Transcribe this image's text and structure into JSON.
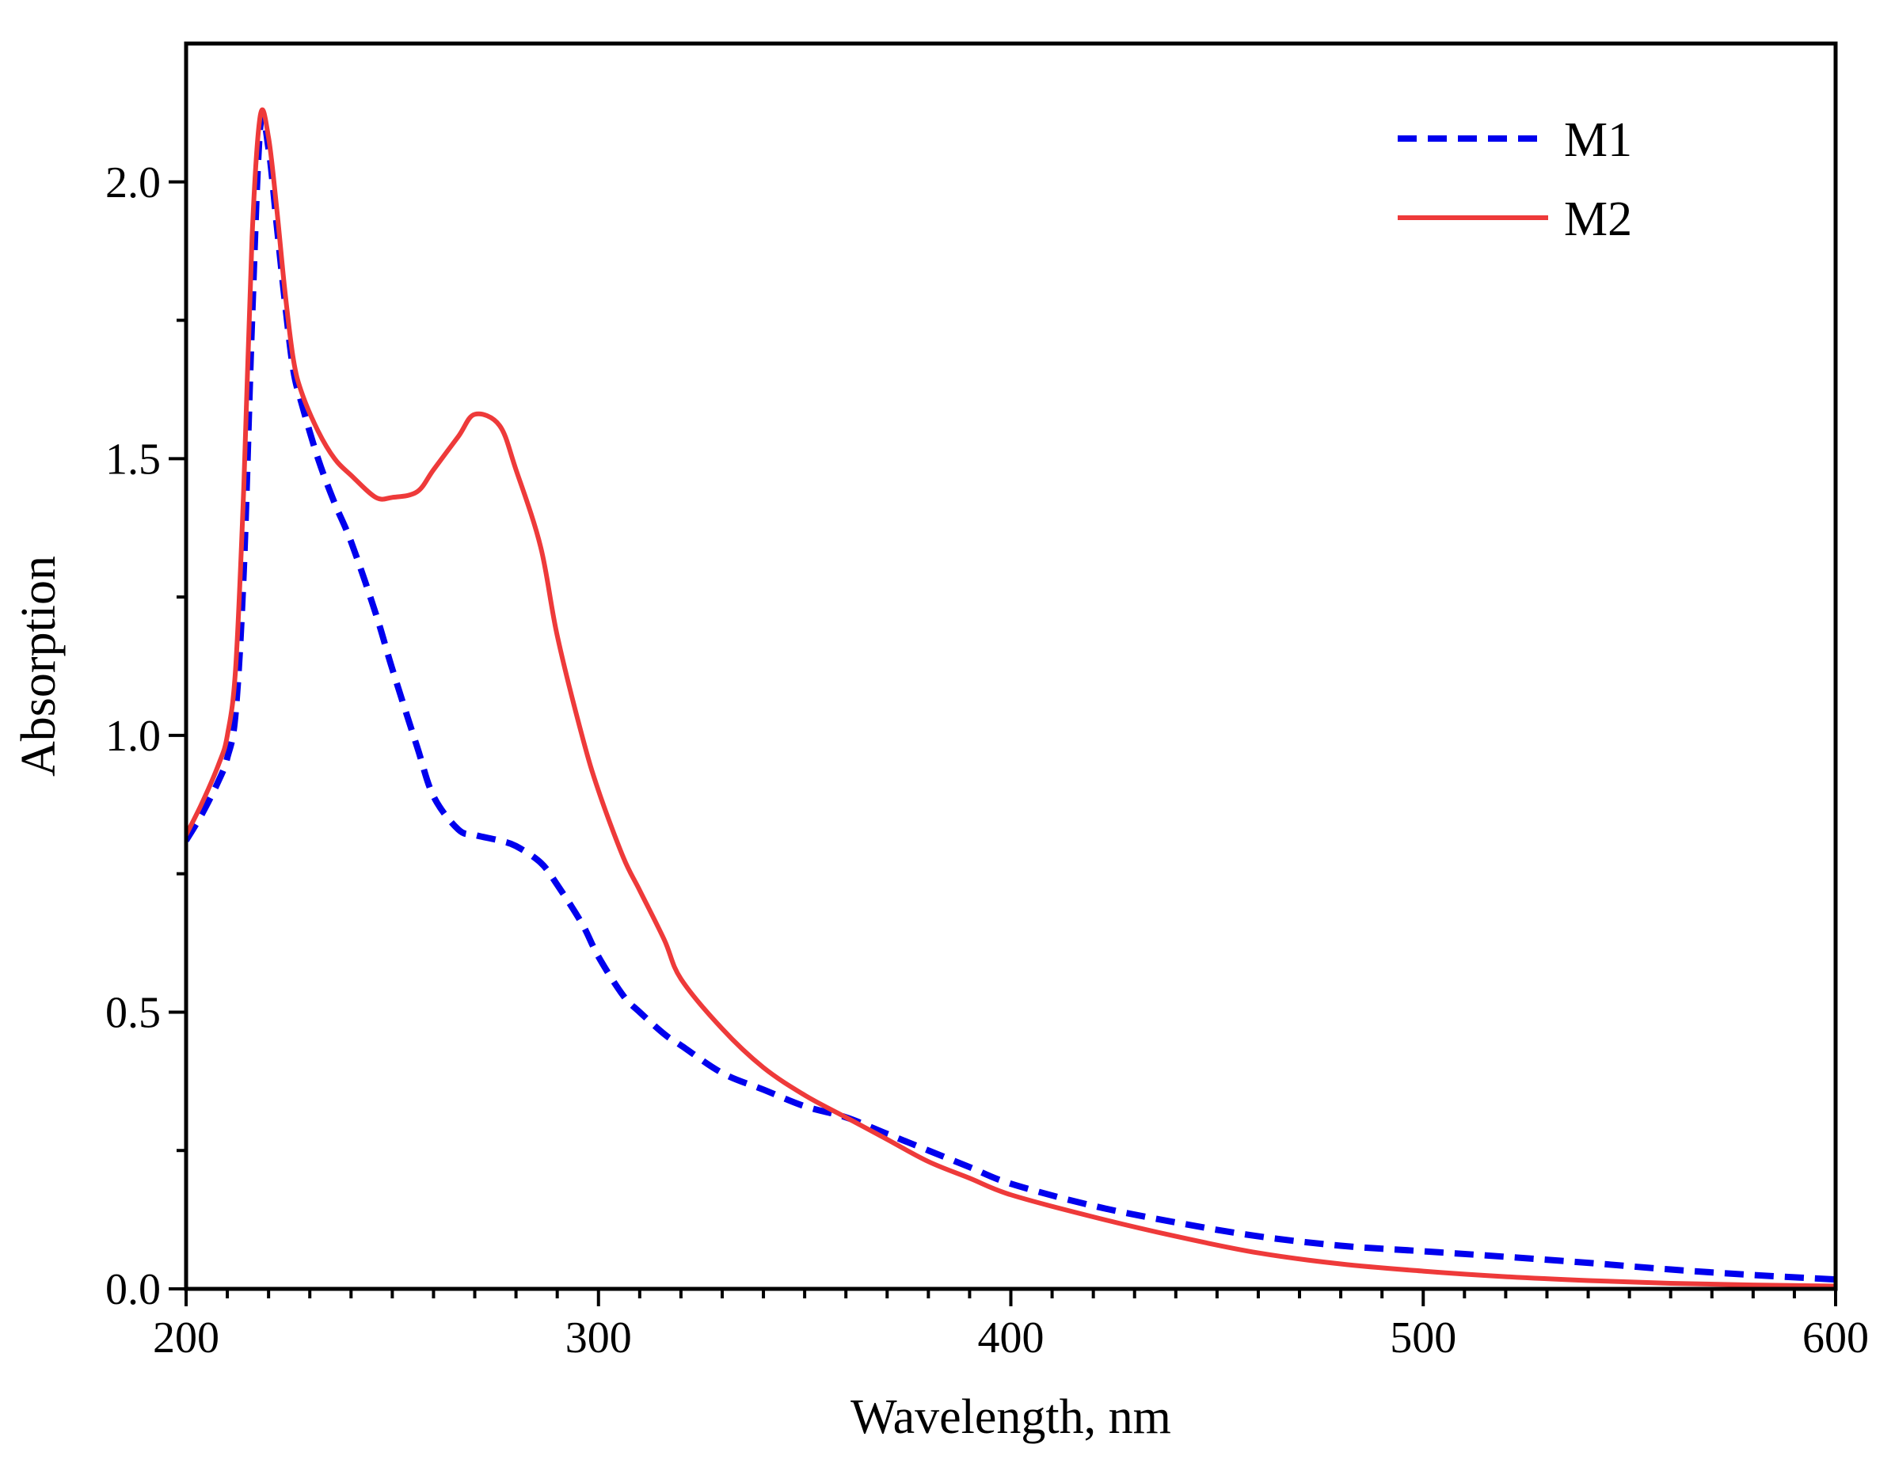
{
  "chart_data": {
    "type": "line",
    "title": "",
    "xlabel": "Wavelength, nm",
    "ylabel": "Absorption",
    "xlim": [
      200,
      600
    ],
    "ylim": [
      0,
      2.25
    ],
    "x_ticks": [
      200,
      300,
      400,
      500,
      600
    ],
    "x_tick_labels": [
      "200",
      "300",
      "400",
      "500",
      "600"
    ],
    "y_ticks": [
      0.0,
      0.5,
      1.0,
      1.5,
      2.0
    ],
    "y_tick_labels": [
      "0.0",
      "0.5",
      "1.0",
      "1.5",
      "2.0"
    ],
    "grid": false,
    "legend_position": "top-right",
    "colors": {
      "M1": "#0000ee",
      "M2": "#ee3a3a"
    },
    "series": [
      {
        "name": "M1",
        "style": "dashed",
        "x": [
          200,
          204,
          208,
          210,
          212,
          214,
          216,
          218,
          220,
          222,
          224,
          226,
          228,
          232,
          236,
          240,
          246,
          250,
          256,
          260,
          266,
          270,
          276,
          280,
          286,
          290,
          296,
          300,
          306,
          310,
          316,
          320,
          330,
          340,
          350,
          360,
          370,
          380,
          390,
          400,
          420,
          440,
          460,
          480,
          500,
          520,
          540,
          560,
          580,
          600
        ],
        "values": [
          0.81,
          0.86,
          0.92,
          0.96,
          1.04,
          1.3,
          1.75,
          2.1,
          2.06,
          1.92,
          1.78,
          1.66,
          1.6,
          1.5,
          1.42,
          1.35,
          1.22,
          1.12,
          0.98,
          0.89,
          0.83,
          0.82,
          0.81,
          0.8,
          0.77,
          0.73,
          0.66,
          0.6,
          0.53,
          0.5,
          0.46,
          0.44,
          0.39,
          0.36,
          0.33,
          0.31,
          0.28,
          0.25,
          0.22,
          0.19,
          0.15,
          0.12,
          0.095,
          0.078,
          0.068,
          0.058,
          0.047,
          0.035,
          0.025,
          0.017
        ]
      },
      {
        "name": "M2",
        "style": "solid",
        "x": [
          200,
          204,
          208,
          210,
          212,
          214,
          216,
          218,
          220,
          222,
          224,
          226,
          228,
          232,
          236,
          240,
          246,
          250,
          256,
          260,
          266,
          270,
          276,
          280,
          286,
          290,
          296,
          300,
          306,
          310,
          316,
          320,
          330,
          340,
          350,
          360,
          370,
          380,
          390,
          400,
          420,
          440,
          460,
          480,
          500,
          520,
          540,
          560,
          580,
          600
        ],
        "values": [
          0.82,
          0.88,
          0.95,
          1.0,
          1.12,
          1.45,
          1.9,
          2.12,
          2.08,
          1.95,
          1.8,
          1.68,
          1.62,
          1.55,
          1.5,
          1.47,
          1.43,
          1.43,
          1.44,
          1.48,
          1.54,
          1.58,
          1.56,
          1.48,
          1.34,
          1.18,
          1.0,
          0.9,
          0.78,
          0.72,
          0.63,
          0.56,
          0.47,
          0.4,
          0.35,
          0.31,
          0.27,
          0.23,
          0.2,
          0.17,
          0.13,
          0.095,
          0.065,
          0.045,
          0.032,
          0.022,
          0.015,
          0.01,
          0.007,
          0.005
        ]
      }
    ]
  }
}
